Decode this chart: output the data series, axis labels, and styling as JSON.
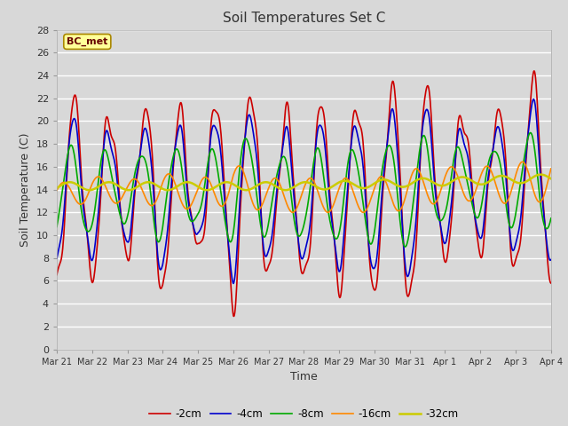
{
  "title": "Soil Temperatures Set C",
  "xlabel": "Time",
  "ylabel": "Soil Temperature (C)",
  "ylim": [
    0,
    28
  ],
  "yticks": [
    0,
    2,
    4,
    6,
    8,
    10,
    12,
    14,
    16,
    18,
    20,
    22,
    24,
    26,
    28
  ],
  "xtick_labels": [
    "Mar 21",
    "Mar 22",
    "Mar 23",
    "Mar 24",
    "Mar 25",
    "Mar 26",
    "Mar 27",
    "Mar 28",
    "Mar 29",
    "Mar 30",
    "Mar 31",
    "Apr 1",
    "Apr 2",
    "Apr 3",
    "Apr 4"
  ],
  "legend_labels": [
    "-2cm",
    "-4cm",
    "-8cm",
    "-16cm",
    "-32cm"
  ],
  "legend_colors": [
    "#cc0000",
    "#0000cc",
    "#00aa00",
    "#ff8800",
    "#cccc00"
  ],
  "line_widths": [
    1.2,
    1.2,
    1.2,
    1.2,
    1.8
  ],
  "annotation_text": "BC_met",
  "bg_color": "#d8d8d8",
  "plot_bg_color": "#d8d8d8",
  "grid_color": "#ffffff",
  "days": 14
}
